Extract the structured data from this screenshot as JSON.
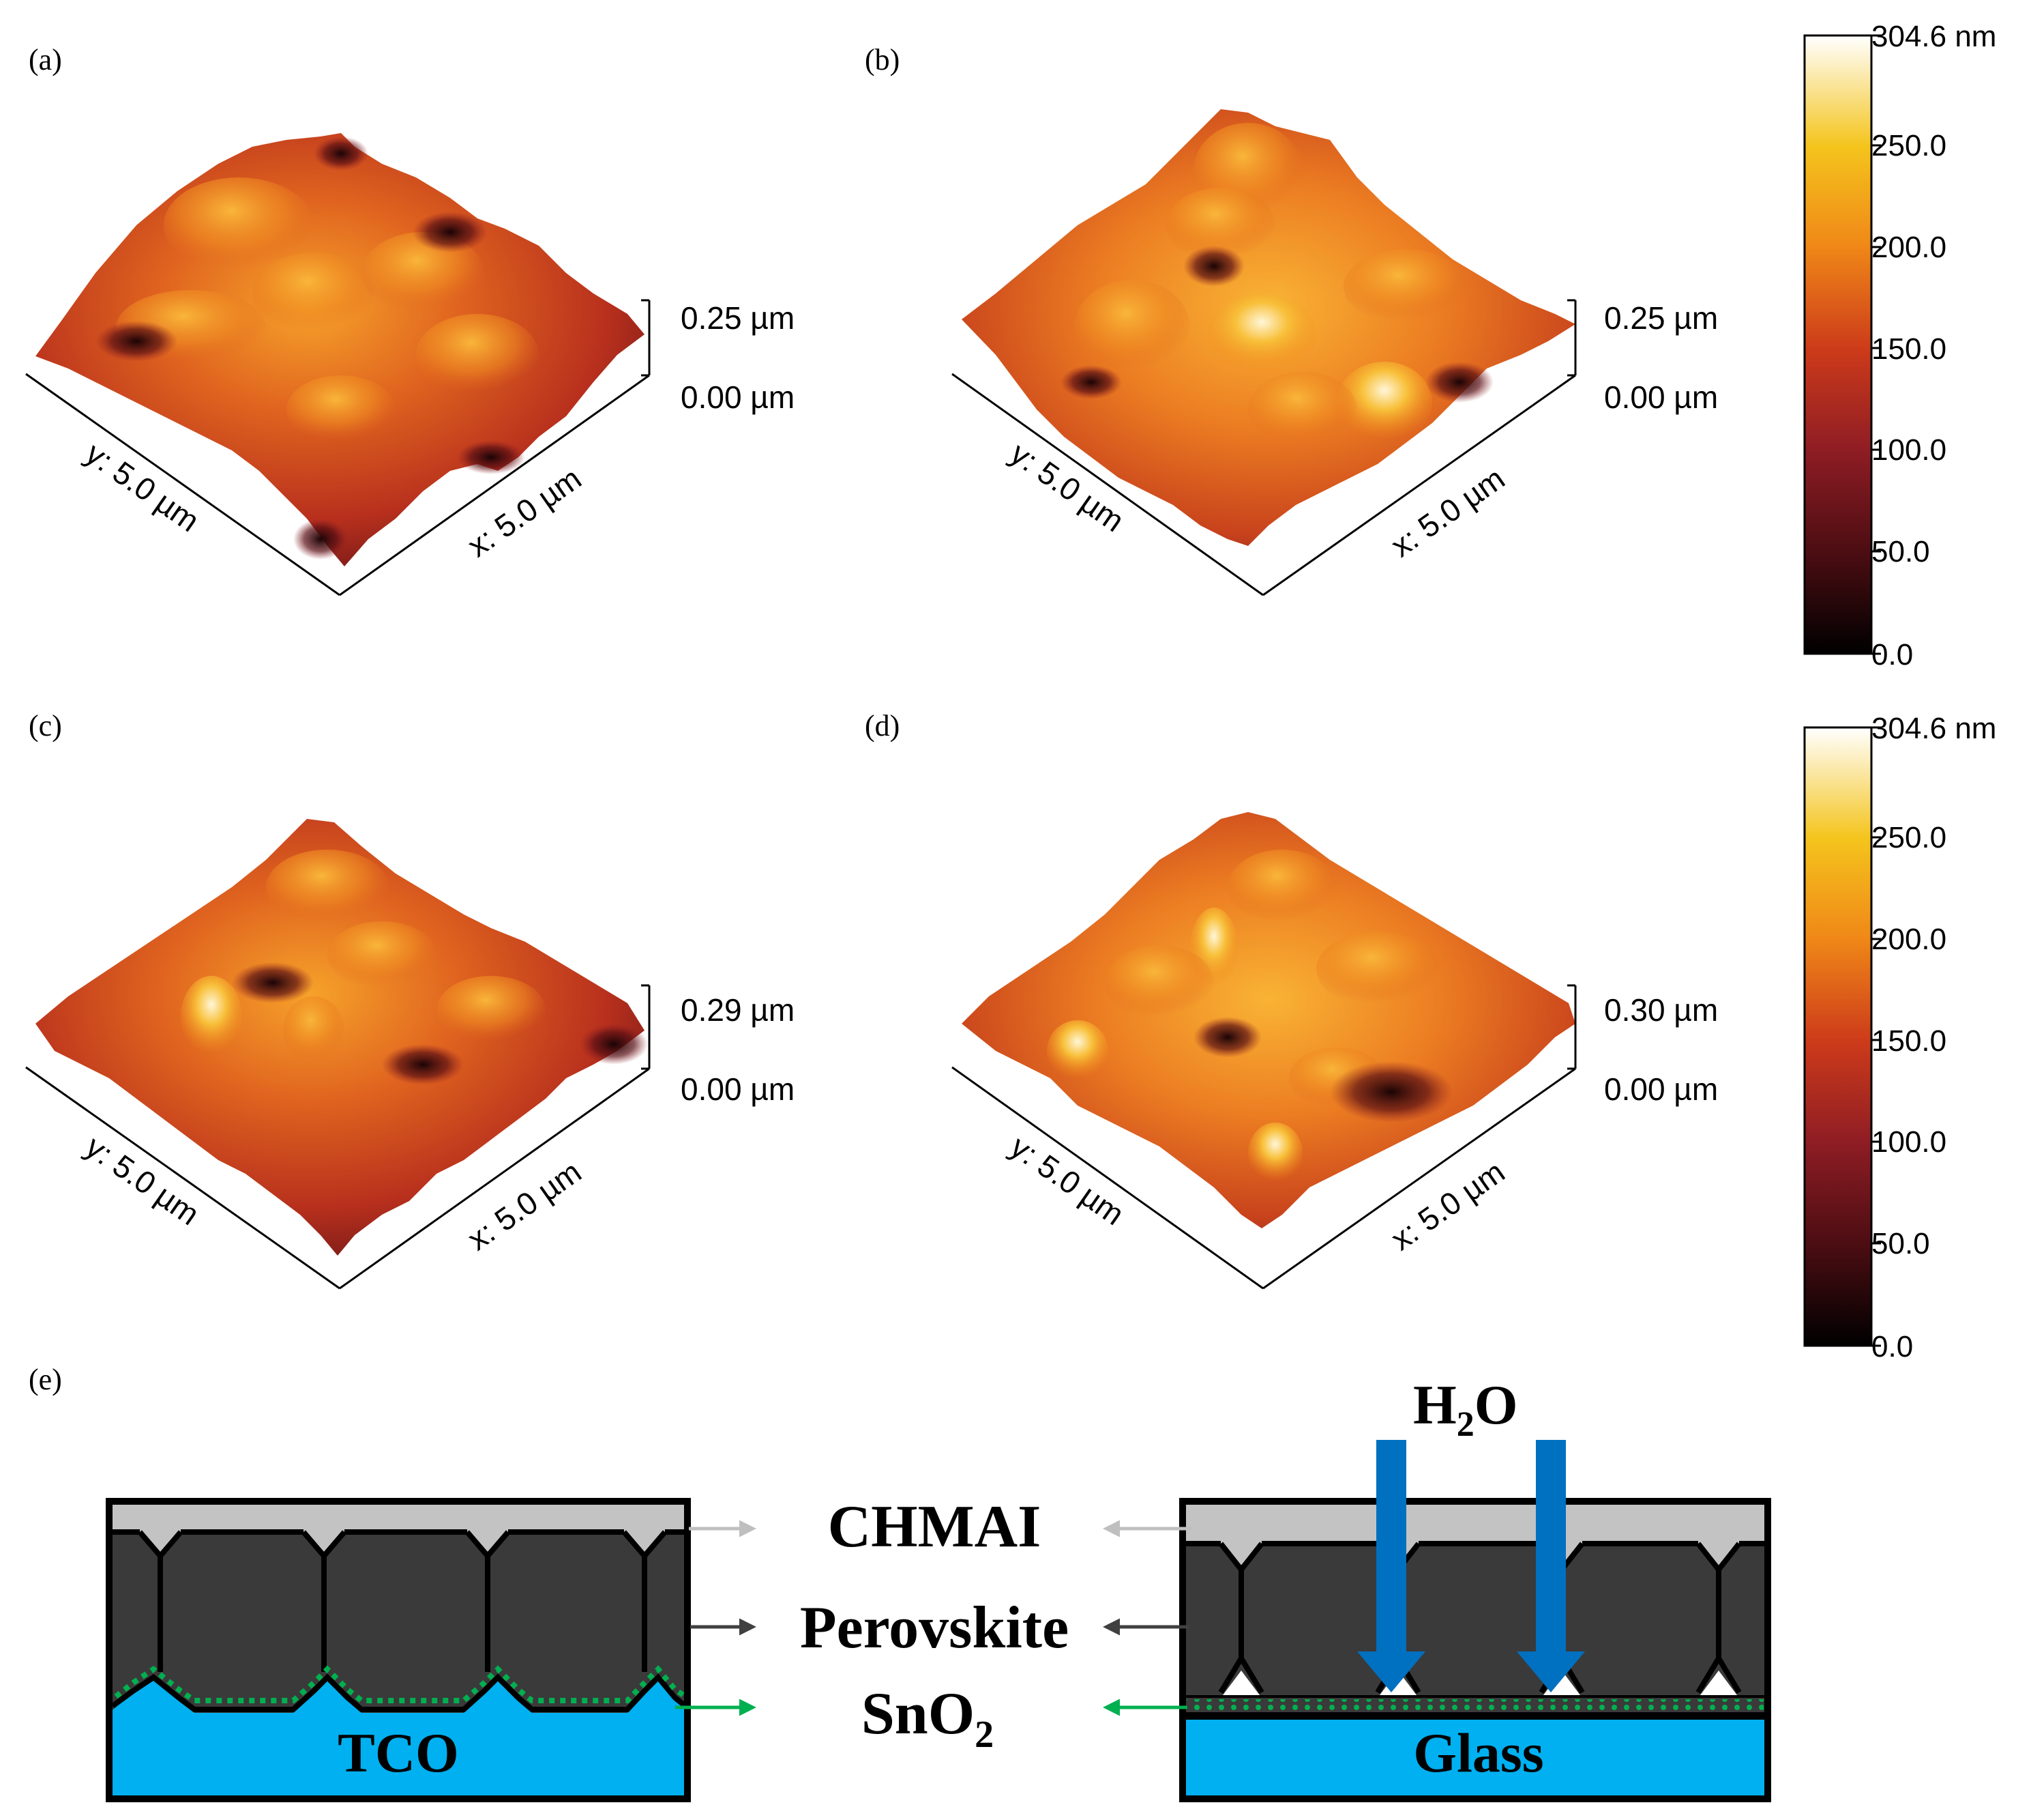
{
  "panels": [
    {
      "label": "(a)",
      "z_top": "0.25 µm",
      "z_bottom": "0.00 µm",
      "y_axis": "y: 5.0 µm",
      "x_axis": "x: 5.0 µm"
    },
    {
      "label": "(b)",
      "z_top": "0.25 µm",
      "z_bottom": "0.00 µm",
      "y_axis": "y: 5.0 µm",
      "x_axis": "x: 5.0 µm"
    },
    {
      "label": "(c)",
      "z_top": "0.29 µm",
      "z_bottom": "0.00 µm",
      "y_axis": "y: 5.0 µm",
      "x_axis": "x: 5.0 µm"
    },
    {
      "label": "(d)",
      "z_top": "0.30 µm",
      "z_bottom": "0.00 µm",
      "y_axis": "y: 5.0 µm",
      "x_axis": "x: 5.0 µm"
    }
  ],
  "colorbar": {
    "unit_max": "304.6 nm",
    "ticks": [
      "250.0",
      "200.0",
      "150.0",
      "100.0",
      "50.0",
      "0.0"
    ]
  },
  "schematic": {
    "label": "(e)",
    "layers": {
      "top": "CHMAI",
      "middle": "Perovskite",
      "bottom_prefix": "SnO",
      "bottom_sub": "2"
    },
    "left_substrate": "TCO",
    "right_substrate": "Glass",
    "water_main": "H",
    "water_sub": "2",
    "water_end": "O"
  },
  "colors": {
    "chmai_gray": "#c3c3c3",
    "perovskite_dark": "#3a3a3a",
    "substrate_blue": "#00b0f0",
    "sno2_green": "#00b050",
    "water_arrow": "#0070c0",
    "arrow_light": "#bfbfbf",
    "arrow_dark": "#404040"
  }
}
